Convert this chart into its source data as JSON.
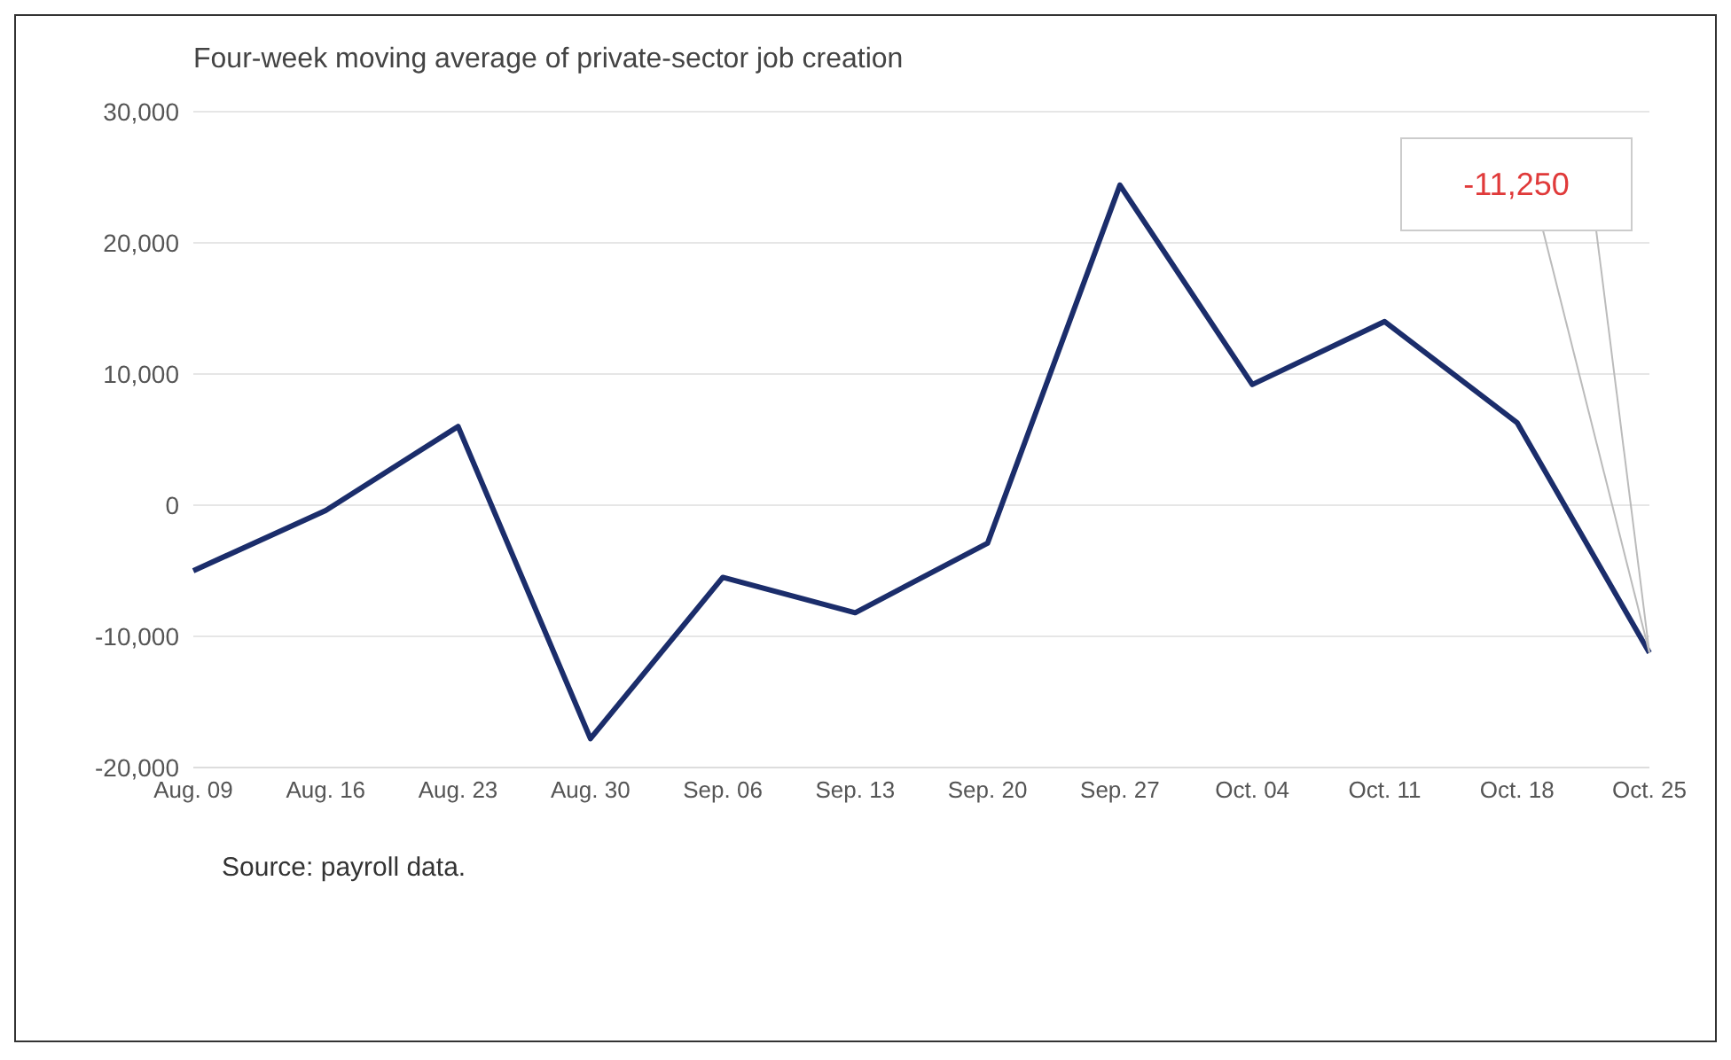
{
  "chart_data": {
    "type": "line",
    "subtitle": "Four-week moving average of private-sector job creation",
    "categories": [
      "Aug. 09",
      "Aug. 16",
      "Aug. 23",
      "Aug. 30",
      "Sep. 06",
      "Sep. 13",
      "Sep. 20",
      "Sep. 27",
      "Oct. 04",
      "Oct. 11",
      "Oct. 18",
      "Oct. 25"
    ],
    "series": [
      {
        "color": "#1b2d6b",
        "values": [
          -5000,
          -400,
          6000,
          -17800,
          -5500,
          -8200,
          -2900,
          24400,
          9200,
          14000,
          6300,
          -11250
        ]
      }
    ],
    "ylim": [
      -20000,
      30000
    ],
    "yticks": [
      {
        "value": -20000,
        "label": "-20,000"
      },
      {
        "value": -10000,
        "label": "-10,000"
      },
      {
        "value": 0,
        "label": "0"
      },
      {
        "value": 10000,
        "label": "10,000"
      },
      {
        "value": 20000,
        "label": "20,000"
      },
      {
        "value": 30000,
        "label": "30,000"
      }
    ],
    "grid": "y",
    "legend": false,
    "marker": "none",
    "line_style": "solid",
    "annotations": [
      {
        "text": "-11,250",
        "x": "Oct. 25",
        "y": -11250
      },
      "Source: payroll data."
    ]
  }
}
